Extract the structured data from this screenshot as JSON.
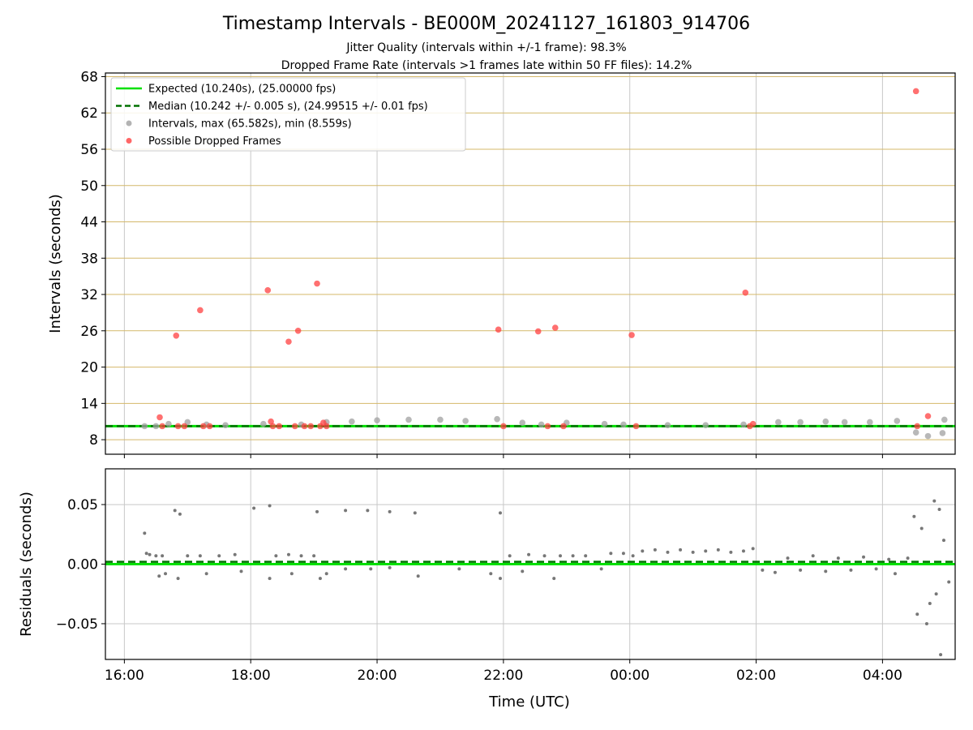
{
  "chart_data": {
    "title": "Timestamp Intervals - BE000M_20241127_161803_914706",
    "subtitle_lines": [
      "Jitter Quality (intervals within +/-1 frame): 98.3%",
      "Dropped Frame Rate (intervals >1 frames late within 50 FF files): 14.2%"
    ],
    "x_axis": {
      "label": "Time (UTC)",
      "unit": "hours since 16:00 UTC",
      "range": [
        -0.3,
        13.15
      ],
      "ticks": [
        {
          "v": 0,
          "label": "16:00"
        },
        {
          "v": 2,
          "label": "18:00"
        },
        {
          "v": 4,
          "label": "20:00"
        },
        {
          "v": 6,
          "label": "22:00"
        },
        {
          "v": 8,
          "label": "00:00"
        },
        {
          "v": 10,
          "label": "02:00"
        },
        {
          "v": 12,
          "label": "04:00"
        }
      ]
    },
    "panels": [
      {
        "id": "intervals",
        "type": "scatter",
        "ylabel": "Intervals (seconds)",
        "ylim": [
          5.6,
          68.6
        ],
        "yticks": [
          {
            "v": 8,
            "label": "8"
          },
          {
            "v": 14,
            "label": "14"
          },
          {
            "v": 20,
            "label": "20"
          },
          {
            "v": 26,
            "label": "26"
          },
          {
            "v": 32,
            "label": "32"
          },
          {
            "v": 38,
            "label": "38"
          },
          {
            "v": 44,
            "label": "44"
          },
          {
            "v": 50,
            "label": "50"
          },
          {
            "v": 56,
            "label": "56"
          },
          {
            "v": 62,
            "label": "62"
          },
          {
            "v": 68,
            "label": "68"
          }
        ],
        "hgrid_color": "#d4b86a",
        "expected": {
          "value": 10.24,
          "color": "#00e000"
        },
        "median": {
          "value": 10.242,
          "color": "#007000"
        },
        "legend": {
          "position": "top-left",
          "entries": [
            {
              "kind": "line",
              "color": "#00e000",
              "label": "Expected (10.240s), (25.00000 fps)"
            },
            {
              "kind": "dashed",
              "color": "#007000",
              "label": "Median (10.242 +/- 0.005 s), (24.99515 +/- 0.01 fps)"
            },
            {
              "kind": "dot",
              "color": "#a0a0a0",
              "label": "Intervals, max (65.582s), min (8.559s)"
            },
            {
              "kind": "dot",
              "color": "#ff4040",
              "label": "Possible Dropped Frames"
            }
          ]
        },
        "series": [
          {
            "name": "Intervals, max (65.582s), min (8.559s)",
            "color": "#a0a0a0",
            "points": [
              [
                0.32,
                10.24
              ],
              [
                0.5,
                10.24
              ],
              [
                0.7,
                10.6
              ],
              [
                1.0,
                10.9
              ],
              [
                1.3,
                10.5
              ],
              [
                1.6,
                10.4
              ],
              [
                2.2,
                10.6
              ],
              [
                2.8,
                10.5
              ],
              [
                3.2,
                10.9
              ],
              [
                3.6,
                11.0
              ],
              [
                4.0,
                11.2
              ],
              [
                4.5,
                11.3
              ],
              [
                5.0,
                11.3
              ],
              [
                5.4,
                11.1
              ],
              [
                5.9,
                11.4
              ],
              [
                6.3,
                10.8
              ],
              [
                6.6,
                10.5
              ],
              [
                7.0,
                10.8
              ],
              [
                7.6,
                10.6
              ],
              [
                7.9,
                10.5
              ],
              [
                8.6,
                10.4
              ],
              [
                9.2,
                10.4
              ],
              [
                9.8,
                10.5
              ],
              [
                10.35,
                10.9
              ],
              [
                10.7,
                10.9
              ],
              [
                11.1,
                11.0
              ],
              [
                11.4,
                10.9
              ],
              [
                11.8,
                10.9
              ],
              [
                12.23,
                11.1
              ],
              [
                12.53,
                9.2
              ],
              [
                12.72,
                8.6
              ],
              [
                12.95,
                9.1
              ],
              [
                12.98,
                11.3
              ]
            ]
          },
          {
            "name": "Possible Dropped Frames",
            "color": "#ff4040",
            "points": [
              [
                0.56,
                11.7
              ],
              [
                0.6,
                10.24
              ],
              [
                0.82,
                25.2
              ],
              [
                0.85,
                10.24
              ],
              [
                0.95,
                10.24
              ],
              [
                1.2,
                29.4
              ],
              [
                1.25,
                10.24
              ],
              [
                1.35,
                10.24
              ],
              [
                2.27,
                32.7
              ],
              [
                2.32,
                11.0
              ],
              [
                2.35,
                10.24
              ],
              [
                2.45,
                10.24
              ],
              [
                2.6,
                24.2
              ],
              [
                2.7,
                10.24
              ],
              [
                2.75,
                26.0
              ],
              [
                2.85,
                10.24
              ],
              [
                2.95,
                10.24
              ],
              [
                3.05,
                33.8
              ],
              [
                3.1,
                10.24
              ],
              [
                3.15,
                10.8
              ],
              [
                3.2,
                10.24
              ],
              [
                5.92,
                26.2
              ],
              [
                6.0,
                10.24
              ],
              [
                6.55,
                25.9
              ],
              [
                6.7,
                10.24
              ],
              [
                6.82,
                26.5
              ],
              [
                6.95,
                10.24
              ],
              [
                8.03,
                25.3
              ],
              [
                8.1,
                10.24
              ],
              [
                9.83,
                32.3
              ],
              [
                9.9,
                10.24
              ],
              [
                9.95,
                10.6
              ],
              [
                12.53,
                65.6
              ],
              [
                12.55,
                10.24
              ],
              [
                12.72,
                11.9
              ]
            ]
          }
        ]
      },
      {
        "id": "residuals",
        "type": "scatter",
        "ylabel": "Residuals (seconds)",
        "ylim": [
          -0.08,
          0.08
        ],
        "yticks": [
          {
            "v": 0.05,
            "label": "0.05"
          },
          {
            "v": 0.0,
            "label": "0.00"
          },
          {
            "v": -0.05,
            "label": "−0.05"
          }
        ],
        "hgrid_color": "#c8c8c8",
        "expected": {
          "value": 0.0,
          "color": "#00e000"
        },
        "median": {
          "value": 0.002,
          "color": "#007000"
        },
        "series": [
          {
            "name": "Residuals",
            "color": "#777777",
            "points": [
              [
                0.32,
                0.026
              ],
              [
                0.35,
                0.009
              ],
              [
                0.4,
                0.008
              ],
              [
                0.5,
                0.007
              ],
              [
                0.55,
                -0.01
              ],
              [
                0.6,
                0.007
              ],
              [
                0.65,
                -0.008
              ],
              [
                0.8,
                0.045
              ],
              [
                0.88,
                0.042
              ],
              [
                0.85,
                -0.012
              ],
              [
                1.0,
                0.007
              ],
              [
                1.2,
                0.007
              ],
              [
                1.3,
                -0.008
              ],
              [
                1.5,
                0.007
              ],
              [
                1.75,
                0.008
              ],
              [
                1.85,
                -0.006
              ],
              [
                2.05,
                0.047
              ],
              [
                2.3,
                0.049
              ],
              [
                2.3,
                -0.012
              ],
              [
                2.4,
                0.007
              ],
              [
                2.6,
                0.008
              ],
              [
                2.65,
                -0.008
              ],
              [
                2.8,
                0.007
              ],
              [
                3.0,
                0.007
              ],
              [
                3.05,
                0.044
              ],
              [
                3.1,
                -0.012
              ],
              [
                3.2,
                -0.008
              ],
              [
                3.5,
                0.045
              ],
              [
                3.5,
                -0.004
              ],
              [
                3.85,
                0.045
              ],
              [
                3.9,
                -0.004
              ],
              [
                4.2,
                0.044
              ],
              [
                4.2,
                -0.003
              ],
              [
                4.6,
                0.043
              ],
              [
                4.65,
                -0.01
              ],
              [
                5.3,
                -0.004
              ],
              [
                5.8,
                -0.008
              ],
              [
                5.95,
                0.043
              ],
              [
                5.95,
                -0.012
              ],
              [
                6.1,
                0.007
              ],
              [
                6.3,
                -0.006
              ],
              [
                6.4,
                0.008
              ],
              [
                6.65,
                0.007
              ],
              [
                6.8,
                -0.012
              ],
              [
                6.9,
                0.007
              ],
              [
                7.1,
                0.007
              ],
              [
                7.3,
                0.007
              ],
              [
                7.55,
                -0.004
              ],
              [
                7.7,
                0.009
              ],
              [
                7.9,
                0.009
              ],
              [
                8.05,
                0.007
              ],
              [
                8.2,
                0.011
              ],
              [
                8.4,
                0.012
              ],
              [
                8.6,
                0.01
              ],
              [
                8.8,
                0.012
              ],
              [
                9.0,
                0.01
              ],
              [
                9.2,
                0.011
              ],
              [
                9.4,
                0.012
              ],
              [
                9.6,
                0.01
              ],
              [
                9.8,
                0.011
              ],
              [
                9.95,
                0.013
              ],
              [
                10.1,
                -0.005
              ],
              [
                10.3,
                -0.007
              ],
              [
                10.5,
                0.005
              ],
              [
                10.7,
                -0.005
              ],
              [
                10.9,
                0.007
              ],
              [
                11.1,
                -0.006
              ],
              [
                11.3,
                0.005
              ],
              [
                11.5,
                -0.005
              ],
              [
                11.7,
                0.006
              ],
              [
                11.9,
                -0.004
              ],
              [
                12.1,
                0.004
              ],
              [
                12.2,
                -0.008
              ],
              [
                12.4,
                0.005
              ],
              [
                12.5,
                0.04
              ],
              [
                12.55,
                -0.042
              ],
              [
                12.62,
                0.03
              ],
              [
                12.7,
                -0.05
              ],
              [
                12.75,
                -0.033
              ],
              [
                12.82,
                0.053
              ],
              [
                12.85,
                -0.025
              ],
              [
                12.9,
                0.046
              ],
              [
                12.92,
                -0.076
              ],
              [
                12.97,
                0.02
              ],
              [
                13.05,
                -0.015
              ]
            ]
          }
        ]
      }
    ]
  }
}
